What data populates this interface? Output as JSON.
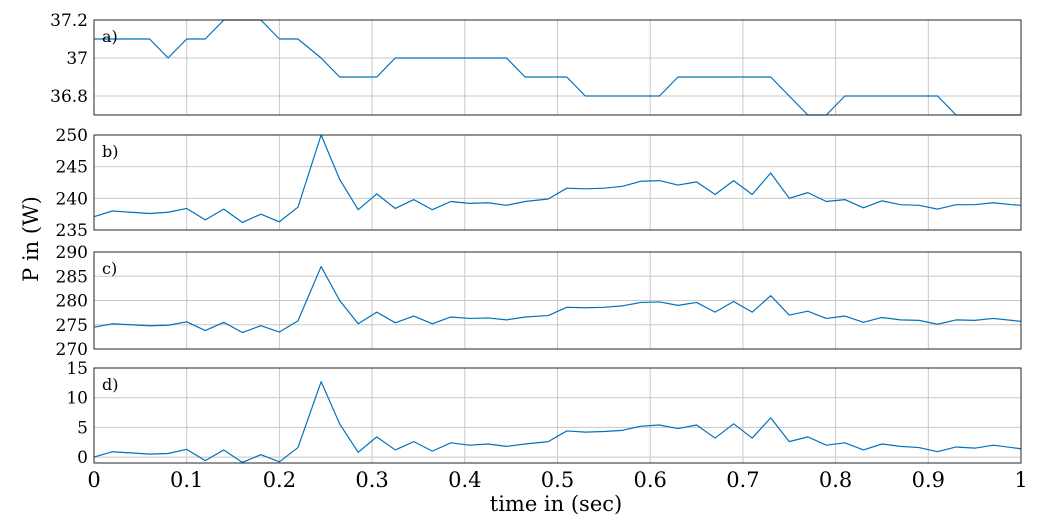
{
  "chart_data": {
    "type": "line",
    "xlabel": "time in (sec)",
    "ylabel": "P in (W)",
    "xlim": [
      0,
      1
    ],
    "xticks": [
      0,
      0.1,
      0.2,
      0.3,
      0.4,
      0.5,
      0.6,
      0.7,
      0.8,
      0.9,
      1
    ],
    "xtick_labels": [
      "0",
      "0.1",
      "0.2",
      "0.3",
      "0.4",
      "0.5",
      "0.6",
      "0.7",
      "0.8",
      "0.9",
      "1"
    ],
    "grid": true,
    "line_color": "#0072BD",
    "x": [
      0,
      0.02,
      0.04,
      0.06,
      0.08,
      0.1,
      0.12,
      0.14,
      0.16,
      0.18,
      0.2,
      0.22,
      0.245,
      0.265,
      0.285,
      0.305,
      0.325,
      0.345,
      0.365,
      0.385,
      0.405,
      0.425,
      0.445,
      0.465,
      0.49,
      0.51,
      0.53,
      0.55,
      0.57,
      0.59,
      0.61,
      0.63,
      0.65,
      0.67,
      0.69,
      0.71,
      0.73,
      0.75,
      0.77,
      0.79,
      0.81,
      0.83,
      0.85,
      0.87,
      0.89,
      0.91,
      0.93,
      0.95,
      0.97,
      0.99,
      1.0
    ],
    "panels": [
      {
        "label": "a)",
        "ylim": [
          36.7,
          37.2
        ],
        "yticks": [
          36.8,
          37,
          37.2
        ],
        "ytick_labels": [
          "36.8",
          "37",
          "37.2"
        ],
        "values": [
          37.1,
          37.1,
          37.1,
          37.1,
          37.0,
          37.1,
          37.1,
          37.2,
          37.2,
          37.2,
          37.1,
          37.1,
          37.0,
          36.9,
          36.9,
          36.9,
          37.0,
          37.0,
          37.0,
          37.0,
          37.0,
          37.0,
          37.0,
          36.9,
          36.9,
          36.9,
          36.8,
          36.8,
          36.8,
          36.8,
          36.8,
          36.9,
          36.9,
          36.9,
          36.9,
          36.9,
          36.9,
          36.8,
          36.7,
          36.7,
          36.8,
          36.8,
          36.8,
          36.8,
          36.8,
          36.8,
          36.7,
          36.7,
          36.7,
          36.7,
          36.7
        ]
      },
      {
        "label": "b)",
        "ylim": [
          235,
          250
        ],
        "yticks": [
          235,
          240,
          245,
          250
        ],
        "ytick_labels": [
          "235",
          "240",
          "245",
          "250"
        ],
        "values": [
          237.1,
          238.0,
          237.8,
          237.6,
          237.8,
          238.4,
          236.6,
          238.3,
          236.2,
          237.5,
          236.3,
          238.6,
          250.0,
          243.0,
          238.2,
          240.7,
          238.4,
          239.8,
          238.2,
          239.5,
          239.2,
          239.3,
          238.9,
          239.5,
          239.9,
          241.6,
          241.5,
          241.6,
          241.9,
          242.7,
          242.8,
          242.1,
          242.6,
          240.6,
          242.8,
          240.6,
          244.0,
          240.0,
          240.9,
          239.5,
          239.8,
          238.5,
          239.6,
          239.0,
          238.9,
          238.3,
          239.0,
          239.0,
          239.3,
          239.0,
          238.9
        ]
      },
      {
        "label": "c)",
        "ylim": [
          270,
          290
        ],
        "yticks": [
          270,
          275,
          280,
          285,
          290
        ],
        "ytick_labels": [
          "270",
          "275",
          "280",
          "285",
          "290"
        ],
        "values": [
          274.5,
          275.2,
          275.0,
          274.8,
          274.9,
          275.6,
          273.8,
          275.5,
          273.4,
          274.8,
          273.5,
          275.8,
          287.0,
          280.0,
          275.2,
          277.6,
          275.4,
          276.8,
          275.2,
          276.6,
          276.3,
          276.4,
          276.0,
          276.6,
          276.9,
          278.6,
          278.5,
          278.6,
          278.9,
          279.6,
          279.7,
          279.0,
          279.6,
          277.6,
          279.8,
          277.6,
          281.0,
          277.0,
          277.8,
          276.3,
          276.8,
          275.5,
          276.5,
          276.0,
          275.9,
          275.1,
          276.0,
          275.9,
          276.3,
          275.9,
          275.7
        ]
      },
      {
        "label": "d)",
        "ylim": [
          -1,
          15
        ],
        "yticks": [
          0,
          5,
          10,
          15
        ],
        "ytick_labels": [
          "0",
          "5",
          "10",
          "15"
        ],
        "values": [
          0.0,
          0.9,
          0.7,
          0.5,
          0.6,
          1.3,
          -0.6,
          1.2,
          -0.9,
          0.4,
          -0.8,
          1.6,
          12.7,
          5.6,
          0.8,
          3.4,
          1.2,
          2.6,
          1.0,
          2.4,
          2.0,
          2.2,
          1.8,
          2.2,
          2.6,
          4.4,
          4.2,
          4.3,
          4.5,
          5.2,
          5.4,
          4.8,
          5.4,
          3.2,
          5.6,
          3.2,
          6.6,
          2.6,
          3.4,
          2.0,
          2.4,
          1.2,
          2.2,
          1.8,
          1.6,
          0.9,
          1.7,
          1.5,
          2.0,
          1.6,
          1.4
        ]
      }
    ]
  }
}
